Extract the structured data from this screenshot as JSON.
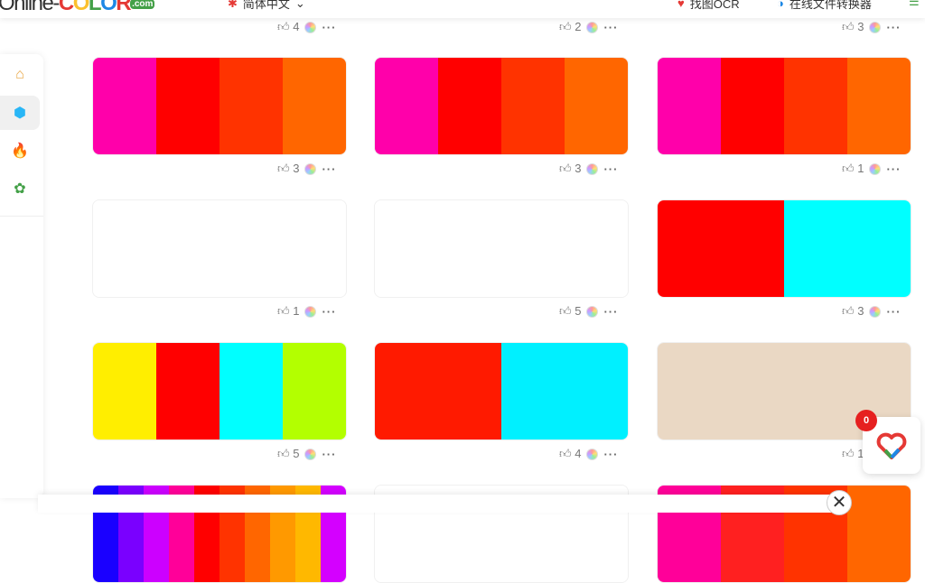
{
  "header": {
    "logo": "Online-COLOR.com",
    "language": "简体中文",
    "ocr": "找图OCR",
    "converter": "在线文件转换器"
  },
  "sidebar": {
    "items": [
      {
        "icon": "home-icon"
      },
      {
        "icon": "cube-icon",
        "active": true
      },
      {
        "icon": "fire-icon"
      },
      {
        "icon": "puzzle-icon"
      }
    ]
  },
  "top_row_likes": [
    "4",
    "2",
    "3"
  ],
  "cards": [
    {
      "colors": [
        "#ff00aa",
        "#ff0000",
        "#ff3300",
        "#ff6600"
      ],
      "likes": "3"
    },
    {
      "colors": [
        "#ff00aa",
        "#ff0000",
        "#ff3300",
        "#ff6600"
      ],
      "likes": "3"
    },
    {
      "colors": [
        "#ff00aa",
        "#ff0000",
        "#ff3300",
        "#ff6600"
      ],
      "likes": "1"
    },
    {
      "colors": [
        "#ffffff"
      ],
      "likes": "1"
    },
    {
      "colors": [
        "#ffffff"
      ],
      "likes": "5"
    },
    {
      "colors": [
        "#ff0000",
        "#00ffff"
      ],
      "likes": "3"
    },
    {
      "colors": [
        "#ffee00",
        "#ff0000",
        "#00ffff",
        "#b3ff00"
      ],
      "likes": "5"
    },
    {
      "colors": [
        "#ff1a00",
        "#00f0ff"
      ],
      "likes": "4"
    },
    {
      "colors": [
        "#ead8c4"
      ],
      "likes": "1"
    },
    {
      "colors": [
        "#1a00ff",
        "#7a00ff",
        "#cc00ff",
        "#ff0099",
        "#ff0000",
        "#ff3300",
        "#ff6600",
        "#ff9900",
        "#ffb800",
        "#d400ff"
      ]
    },
    {
      "colors": [
        "#ffffff"
      ]
    },
    {
      "colors": [
        "#ff0099",
        "#ff2020",
        "#ff3300",
        "#ff6600"
      ]
    }
  ],
  "widget": {
    "badge": "0"
  },
  "close_label": "✕"
}
